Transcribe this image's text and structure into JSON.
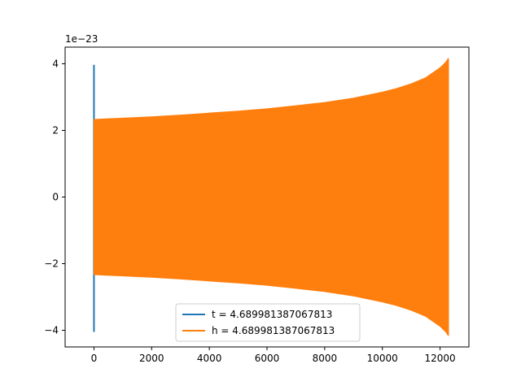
{
  "chart_data": {
    "type": "line",
    "title": "",
    "xlabel": "",
    "ylabel": "",
    "y_offset_label": "1e−23",
    "xlim": [
      -1000,
      13000
    ],
    "ylim": [
      -4.5,
      4.5
    ],
    "x_ticks": [
      0,
      2000,
      4000,
      6000,
      8000,
      10000,
      12000
    ],
    "x_tick_labels": [
      "0",
      "2000",
      "4000",
      "6000",
      "8000",
      "10000",
      "12000"
    ],
    "y_ticks": [
      -4,
      -2,
      0,
      2,
      4
    ],
    "y_tick_labels": [
      "−4",
      "−2",
      "0",
      "2",
      "4"
    ],
    "grid": false,
    "legend_position": "lower center",
    "series": [
      {
        "name": "t = 4.689981387067813",
        "color": "#1f77b4",
        "style": "vertical spike near x = 0",
        "x": [
          0,
          0
        ],
        "y": [
          -4.05,
          3.97
        ]
      },
      {
        "name": "h = 4.689981387067813",
        "color": "#ff7f0e",
        "style": "dense oscillation (filled envelope)",
        "envelope_x": [
          0,
          1000,
          2000,
          3000,
          4000,
          5000,
          6000,
          7000,
          8000,
          9000,
          10000,
          10500,
          11000,
          11500,
          12000,
          12200,
          12280
        ],
        "envelope_y": [
          2.33,
          2.37,
          2.41,
          2.46,
          2.52,
          2.58,
          2.65,
          2.74,
          2.84,
          2.97,
          3.15,
          3.26,
          3.4,
          3.58,
          3.88,
          4.05,
          4.15
        ]
      }
    ]
  }
}
